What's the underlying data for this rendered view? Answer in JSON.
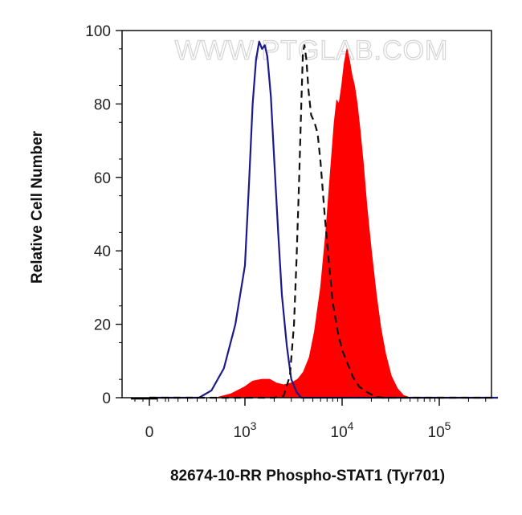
{
  "chart_data": {
    "type": "area",
    "title": "",
    "watermark": "WWW.PTGLAB.COM",
    "xlabel": "82674-10-RR Phospho-STAT1 (Tyr701)",
    "ylabel": "Relative Cell Number",
    "x_scale": "biexponential",
    "xlim": [
      -200,
      400000
    ],
    "ylim": [
      0,
      100
    ],
    "y_ticks": [
      0,
      20,
      40,
      60,
      80,
      100
    ],
    "y_tick_labels": [
      "0",
      "20",
      "40",
      "60",
      "80",
      "100"
    ],
    "x_ticks": [
      {
        "value": 0,
        "base": "0",
        "exp": ""
      },
      {
        "value": 1000,
        "base": "10",
        "exp": "3"
      },
      {
        "value": 10000,
        "base": "10",
        "exp": "4"
      },
      {
        "value": 100000,
        "base": "10",
        "exp": "5"
      }
    ],
    "grid": false,
    "legend": "none",
    "series": [
      {
        "style": "solid-line",
        "color": "#1a1a8c",
        "points": [
          [
            0,
            0
          ],
          [
            300,
            0
          ],
          [
            520,
            0
          ],
          [
            650,
            2
          ],
          [
            780,
            8
          ],
          [
            900,
            20
          ],
          [
            1000,
            36
          ],
          [
            1100,
            58
          ],
          [
            1200,
            80
          ],
          [
            1300,
            92
          ],
          [
            1400,
            97
          ],
          [
            1500,
            95
          ],
          [
            1600,
            96
          ],
          [
            1700,
            93
          ],
          [
            1850,
            82
          ],
          [
            2000,
            65
          ],
          [
            2200,
            45
          ],
          [
            2400,
            28
          ],
          [
            2700,
            14
          ],
          [
            3000,
            5
          ],
          [
            3400,
            1.5
          ],
          [
            3800,
            0
          ],
          [
            10000,
            0
          ],
          [
            400000,
            0
          ]
        ]
      },
      {
        "style": "dashed-line",
        "color": "#111111",
        "points": [
          [
            0,
            0
          ],
          [
            2000,
            0
          ],
          [
            2500,
            0.5
          ],
          [
            2900,
            6
          ],
          [
            3200,
            20
          ],
          [
            3400,
            38
          ],
          [
            3600,
            58
          ],
          [
            3800,
            80
          ],
          [
            3950,
            94
          ],
          [
            4100,
            96
          ],
          [
            4300,
            92
          ],
          [
            4500,
            84
          ],
          [
            4800,
            77
          ],
          [
            5200,
            75
          ],
          [
            5600,
            72
          ],
          [
            6000,
            64
          ],
          [
            6600,
            50
          ],
          [
            7300,
            37
          ],
          [
            8000,
            26
          ],
          [
            9000,
            18
          ],
          [
            10000,
            13
          ],
          [
            11500,
            9
          ],
          [
            13000,
            5.5
          ],
          [
            15000,
            3
          ],
          [
            18000,
            1.5
          ],
          [
            22000,
            0.3
          ],
          [
            26000,
            0
          ],
          [
            400000,
            0
          ]
        ]
      },
      {
        "style": "filled",
        "color": "#ff0000",
        "points": [
          [
            0,
            0
          ],
          [
            700,
            0
          ],
          [
            850,
            1
          ],
          [
            1000,
            3
          ],
          [
            1200,
            4.5
          ],
          [
            1500,
            5
          ],
          [
            1800,
            5
          ],
          [
            2100,
            4
          ],
          [
            2500,
            3.5
          ],
          [
            3000,
            4
          ],
          [
            3500,
            5
          ],
          [
            4000,
            7
          ],
          [
            4600,
            11
          ],
          [
            5200,
            18
          ],
          [
            6000,
            30
          ],
          [
            6800,
            45
          ],
          [
            7500,
            60
          ],
          [
            8300,
            75
          ],
          [
            8800,
            81
          ],
          [
            9300,
            80
          ],
          [
            9900,
            85
          ],
          [
            10500,
            91
          ],
          [
            11200,
            95
          ],
          [
            11900,
            92
          ],
          [
            12600,
            88
          ],
          [
            13400,
            85
          ],
          [
            14300,
            80
          ],
          [
            15300,
            73
          ],
          [
            16500,
            64
          ],
          [
            18000,
            52
          ],
          [
            20000,
            40
          ],
          [
            22500,
            28
          ],
          [
            25000,
            19
          ],
          [
            28000,
            12
          ],
          [
            32000,
            6
          ],
          [
            37000,
            2.5
          ],
          [
            43000,
            0.6
          ],
          [
            50000,
            0
          ],
          [
            400000,
            0
          ]
        ]
      }
    ]
  }
}
